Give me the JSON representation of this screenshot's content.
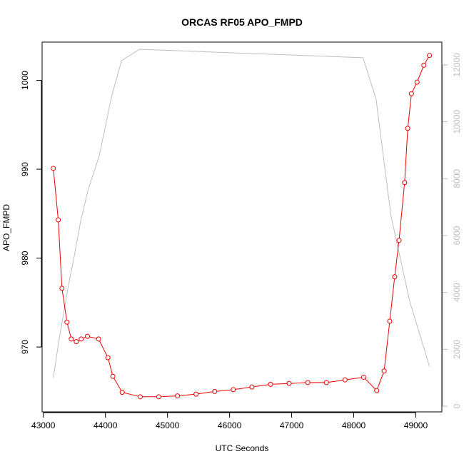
{
  "chart_data": {
    "type": "line",
    "title": "ORCAS RF05 APO_FMPD",
    "xlabel": "UTC Seconds",
    "ylabel": "APO_FMPD",
    "xlim": [
      42980,
      49420
    ],
    "ylim": [
      962.7,
      1004.3
    ],
    "y2lim": [
      -200,
      12800
    ],
    "x_ticks": [
      43000,
      44000,
      45000,
      46000,
      47000,
      48000,
      49000
    ],
    "x_tick_labels": [
      "43000",
      "44000",
      "45000",
      "46000",
      "47000",
      "48000",
      "49000"
    ],
    "y_ticks": [
      970,
      980,
      990,
      1000
    ],
    "y_tick_labels": [
      "970",
      "980",
      "990",
      "1000"
    ],
    "y2_ticks": [
      0,
      2000,
      4000,
      6000,
      8000,
      10000,
      12000
    ],
    "y2_tick_labels": [
      "0",
      "2000",
      "4000",
      "6000",
      "8000",
      "10000",
      "12000"
    ],
    "grid": false,
    "colors": {
      "primary": "#ee0000",
      "secondary": "#bebebe"
    },
    "series": [
      {
        "axis": "left",
        "style": "line+circle",
        "color": "#ee0000",
        "x": [
          43160,
          43240,
          43300,
          43380,
          43450,
          43530,
          43610,
          43710,
          43890,
          44040,
          44120,
          44270,
          44560,
          44860,
          45160,
          45460,
          45760,
          46060,
          46360,
          46660,
          46960,
          47260,
          47560,
          47860,
          48160,
          48370,
          48490,
          48580,
          48660,
          48730,
          48820,
          48870,
          48930,
          49020,
          49130,
          49220
        ],
        "y": [
          990.1,
          984.3,
          976.6,
          972.8,
          970.9,
          970.6,
          970.9,
          971.2,
          970.9,
          968.8,
          966.7,
          964.9,
          964.4,
          964.4,
          964.5,
          964.7,
          965.0,
          965.2,
          965.5,
          965.8,
          965.9,
          966.0,
          966.0,
          966.3,
          966.6,
          965.1,
          967.3,
          972.9,
          977.9,
          982.0,
          988.5,
          994.6,
          998.5,
          999.8,
          1001.7,
          1002.8
        ]
      },
      {
        "axis": "right",
        "style": "line",
        "color": "#bebebe",
        "x": [
          43160,
          43250,
          43400,
          43500,
          43600,
          43720,
          43900,
          44100,
          44260,
          44550,
          48150,
          48360,
          48600,
          48900,
          49220
        ],
        "y": [
          1000,
          2300,
          4200,
          5300,
          6500,
          7600,
          8800,
          10900,
          12150,
          12550,
          12250,
          10800,
          6700,
          3700,
          1400
        ]
      }
    ]
  }
}
